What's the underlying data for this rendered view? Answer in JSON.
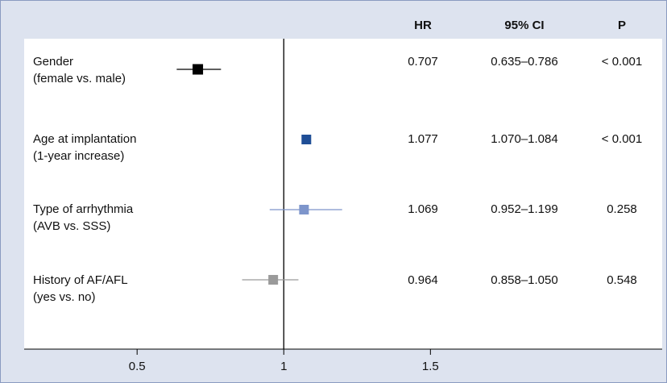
{
  "chart_data": {
    "type": "forest",
    "columns": [
      "HR",
      "95% CI",
      "P"
    ],
    "categories": [
      [
        "Gender",
        "(female vs. male)"
      ],
      [
        "Age at implantation",
        "(1-year increase)"
      ],
      [
        "Type of arrhythmia",
        "(AVB vs. SSS)"
      ],
      [
        "History of AF/AFL",
        "(yes vs. no)"
      ]
    ],
    "values": [
      0.707,
      1.077,
      1.069,
      0.964
    ],
    "ci_lower": [
      0.635,
      1.07,
      0.952,
      0.858
    ],
    "ci_upper": [
      0.786,
      1.084,
      1.199,
      1.05
    ],
    "ci_labels": [
      "0.635–0.786",
      "1.070–1.084",
      "0.952–1.199",
      "0.858–1.050"
    ],
    "p_labels": [
      "< 0.001",
      "< 0.001",
      "0.258",
      "0.548"
    ],
    "colors": [
      "#000000",
      "#1f4e96",
      "#7d95cb",
      "#9a9a9a"
    ],
    "reference": 1,
    "xlim": [
      0.115,
      2.29
    ],
    "xticks": [
      0.5,
      1,
      1.5
    ]
  }
}
